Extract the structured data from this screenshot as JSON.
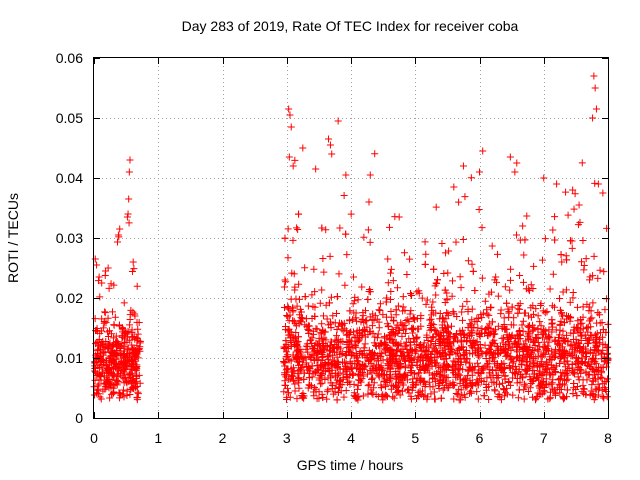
{
  "chart_data": {
    "type": "scatter",
    "title": "Day 283 of 2019, Rate Of TEC Index for receiver coba",
    "xlabel": "GPS time / hours",
    "ylabel": "ROTI / TECUs",
    "xlim": [
      0,
      8
    ],
    "ylim": [
      0,
      0.06
    ],
    "x_ticks": [
      "0",
      "1",
      "2",
      "3",
      "4",
      "5",
      "6",
      "7",
      "8"
    ],
    "y_ticks": [
      "0",
      "0.01",
      "0.02",
      "0.03",
      "0.04",
      "0.05",
      "0.06"
    ],
    "marker": "+",
    "color": "#ff0000",
    "grid": true,
    "series": [
      {
        "name": "ROTI",
        "segments": [
          {
            "x_range": [
              0.0,
              0.72
            ],
            "typical": 0.009,
            "spread": 0.003,
            "count": 420
          },
          {
            "x_range": [
              2.95,
              8.0
            ],
            "typical": 0.01,
            "spread": 0.004,
            "count": 2600
          }
        ],
        "points": [
          {
            "x": 0.02,
            "y": 0.0265
          },
          {
            "x": 0.04,
            "y": 0.0255
          },
          {
            "x": 0.08,
            "y": 0.0235
          },
          {
            "x": 0.12,
            "y": 0.0225
          },
          {
            "x": 0.18,
            "y": 0.0245
          },
          {
            "x": 0.22,
            "y": 0.025
          },
          {
            "x": 0.38,
            "y": 0.0305
          },
          {
            "x": 0.4,
            "y": 0.0315
          },
          {
            "x": 0.52,
            "y": 0.0335
          },
          {
            "x": 0.53,
            "y": 0.034
          },
          {
            "x": 0.54,
            "y": 0.0365
          },
          {
            "x": 0.55,
            "y": 0.041
          },
          {
            "x": 0.56,
            "y": 0.043
          },
          {
            "x": 3.03,
            "y": 0.0515
          },
          {
            "x": 3.05,
            "y": 0.0505
          },
          {
            "x": 3.07,
            "y": 0.0485
          },
          {
            "x": 3.04,
            "y": 0.0435
          },
          {
            "x": 3.1,
            "y": 0.042
          },
          {
            "x": 3.25,
            "y": 0.045
          },
          {
            "x": 3.45,
            "y": 0.0415
          },
          {
            "x": 3.65,
            "y": 0.0465
          },
          {
            "x": 3.68,
            "y": 0.0455
          },
          {
            "x": 3.7,
            "y": 0.044
          },
          {
            "x": 3.8,
            "y": 0.0495
          },
          {
            "x": 3.92,
            "y": 0.0405
          },
          {
            "x": 4.3,
            "y": 0.0405
          },
          {
            "x": 4.28,
            "y": 0.036
          },
          {
            "x": 4.75,
            "y": 0.0335
          },
          {
            "x": 5.6,
            "y": 0.0385
          },
          {
            "x": 5.75,
            "y": 0.042
          },
          {
            "x": 6.0,
            "y": 0.041
          },
          {
            "x": 6.05,
            "y": 0.0445
          },
          {
            "x": 6.48,
            "y": 0.0435
          },
          {
            "x": 6.58,
            "y": 0.0425
          },
          {
            "x": 6.55,
            "y": 0.041
          },
          {
            "x": 7.0,
            "y": 0.04
          },
          {
            "x": 7.2,
            "y": 0.039
          },
          {
            "x": 7.45,
            "y": 0.038
          },
          {
            "x": 7.78,
            "y": 0.057
          },
          {
            "x": 7.8,
            "y": 0.055
          },
          {
            "x": 7.82,
            "y": 0.0515
          },
          {
            "x": 7.76,
            "y": 0.05
          },
          {
            "x": 7.92,
            "y": 0.0375
          },
          {
            "x": 7.85,
            "y": 0.039
          },
          {
            "x": 7.55,
            "y": 0.0355
          }
        ]
      }
    ]
  }
}
